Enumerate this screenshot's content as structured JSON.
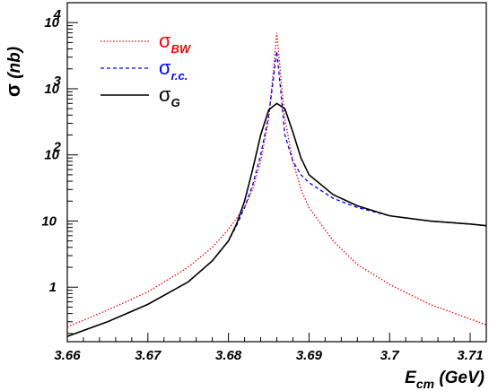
{
  "chart_data": {
    "type": "line",
    "title": "",
    "xlabel": {
      "main": "E",
      "sub": "cm",
      "unit": " (GeV)"
    },
    "ylabel": {
      "main": "σ",
      "unit": " (nb)"
    },
    "xlim": [
      3.66,
      3.712
    ],
    "ylim": [
      0.15,
      20000
    ],
    "yscale": "log",
    "grid": false,
    "legend_position": "top-left",
    "xticks": [
      {
        "value": 3.66,
        "label": "3.66"
      },
      {
        "value": 3.67,
        "label": "3.67"
      },
      {
        "value": 3.68,
        "label": "3.68"
      },
      {
        "value": 3.69,
        "label": "3.69"
      },
      {
        "value": 3.7,
        "label": "3.7"
      },
      {
        "value": 3.71,
        "label": "3.71"
      }
    ],
    "yticks": [
      {
        "value": 1,
        "label": "1",
        "exp": ""
      },
      {
        "value": 10,
        "label": "10",
        "exp": ""
      },
      {
        "value": 100,
        "label": "10",
        "exp": "2"
      },
      {
        "value": 1000,
        "label": "10",
        "exp": "3"
      },
      {
        "value": 10000,
        "label": "10",
        "exp": "4"
      }
    ],
    "series": [
      {
        "name": {
          "symbol": "σ",
          "sub": "BW"
        },
        "color": "#ff0000",
        "style": "dotted",
        "x": [
          3.66,
          3.665,
          3.67,
          3.675,
          3.678,
          3.68,
          3.682,
          3.683,
          3.684,
          3.685,
          3.6855,
          3.686,
          3.6865,
          3.687,
          3.688,
          3.689,
          3.69,
          3.693,
          3.696,
          3.7,
          3.705,
          3.71,
          3.712
        ],
        "y": [
          0.25,
          0.45,
          0.85,
          2.0,
          4.0,
          7.5,
          16,
          30,
          80,
          350,
          1500,
          7000,
          1500,
          350,
          80,
          30,
          16,
          5.0,
          2.2,
          1.1,
          0.55,
          0.33,
          0.27
        ]
      },
      {
        "name": {
          "symbol": "σ",
          "sub": "r.c."
        },
        "color": "#0000ff",
        "style": "dashed",
        "x": [
          3.66,
          3.665,
          3.67,
          3.675,
          3.678,
          3.68,
          3.681,
          3.682,
          3.683,
          3.684,
          3.685,
          3.6855,
          3.686,
          3.6865,
          3.687,
          3.688,
          3.689,
          3.69,
          3.693,
          3.696,
          3.7,
          3.705,
          3.71,
          3.712
        ],
        "y": [
          0.18,
          0.3,
          0.55,
          1.2,
          2.5,
          5.0,
          8.5,
          16,
          35,
          100,
          400,
          1200,
          3700,
          900,
          200,
          80,
          50,
          38,
          22,
          16,
          12,
          10,
          9,
          8.5
        ]
      },
      {
        "name": {
          "symbol": "σ",
          "sub": "G"
        },
        "color": "#000000",
        "style": "solid",
        "x": [
          3.66,
          3.665,
          3.67,
          3.675,
          3.678,
          3.68,
          3.681,
          3.682,
          3.683,
          3.684,
          3.685,
          3.686,
          3.687,
          3.688,
          3.689,
          3.69,
          3.693,
          3.696,
          3.7,
          3.705,
          3.71,
          3.712
        ],
        "y": [
          0.18,
          0.3,
          0.55,
          1.2,
          2.5,
          5.0,
          9,
          20,
          60,
          200,
          480,
          600,
          500,
          220,
          90,
          50,
          25,
          17,
          12,
          10,
          9,
          8.5
        ]
      }
    ]
  }
}
